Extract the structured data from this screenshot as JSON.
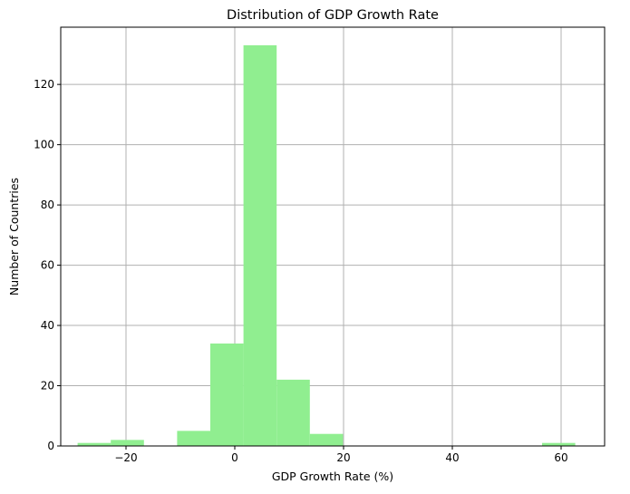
{
  "chart_data": {
    "type": "histogram",
    "title": "Distribution of GDP Growth Rate",
    "xlabel": "GDP Growth Rate (%)",
    "ylabel": "Number of Countries",
    "xlim": [
      -32,
      68
    ],
    "ylim": [
      0,
      139
    ],
    "xticks": [
      -20,
      0,
      20,
      40,
      60
    ],
    "yticks": [
      0,
      20,
      40,
      60,
      80,
      100,
      120
    ],
    "grid": true,
    "bin_edges": [
      -28.9,
      -22.8,
      -16.7,
      -10.6,
      -4.5,
      1.6,
      7.7,
      13.8,
      19.9,
      26.0,
      32.1,
      38.2,
      44.3,
      50.4,
      56.5,
      62.6
    ],
    "counts": [
      1,
      2,
      0,
      5,
      34,
      133,
      22,
      4,
      0,
      0,
      0,
      0,
      0,
      0,
      1
    ],
    "color": "#90ee90",
    "grid_color": "#b0b0b0"
  }
}
